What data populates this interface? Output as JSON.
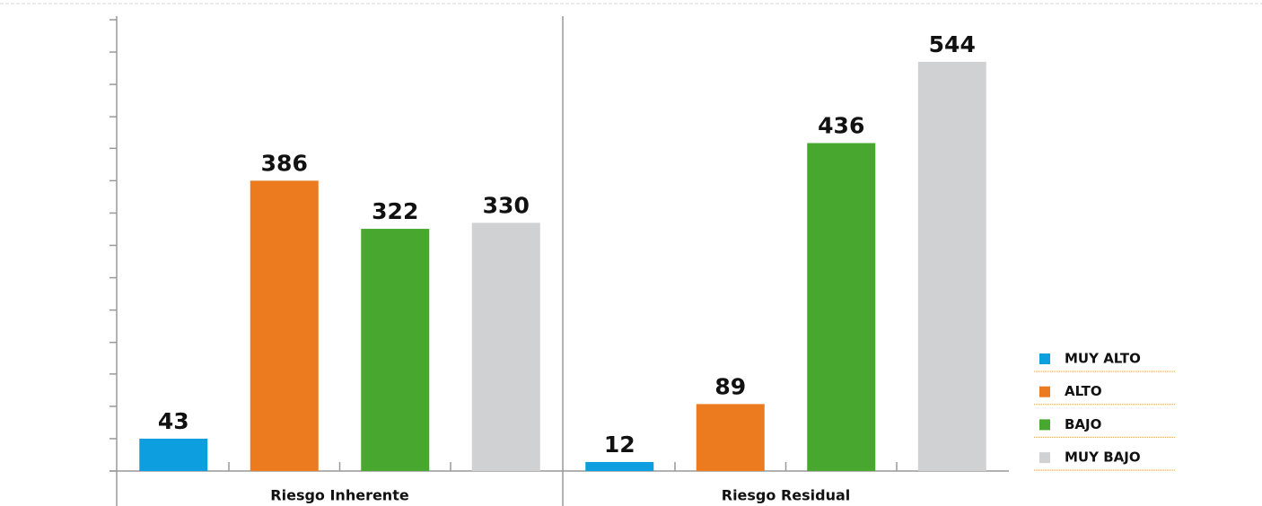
{
  "chart_data": {
    "type": "bar",
    "categories": [
      "Riesgo Inherente",
      "Riesgo Residual"
    ],
    "series": [
      {
        "name": "MUY ALTO",
        "color": "#0c9ede",
        "values": [
          43,
          12
        ]
      },
      {
        "name": "ALTO",
        "color": "#ec7a1f",
        "values": [
          386,
          89
        ]
      },
      {
        "name": "BAJO",
        "color": "#47a72e",
        "values": [
          322,
          436
        ]
      },
      {
        "name": "MUY BAJO",
        "color": "#d0d1d3",
        "values": [
          330,
          544
        ]
      }
    ],
    "ylim": [
      0,
      600
    ],
    "yticks": [
      0,
      43,
      86,
      129,
      171,
      214,
      257,
      300,
      343,
      386,
      429,
      471,
      514,
      557,
      600
    ],
    "legend": "right"
  }
}
